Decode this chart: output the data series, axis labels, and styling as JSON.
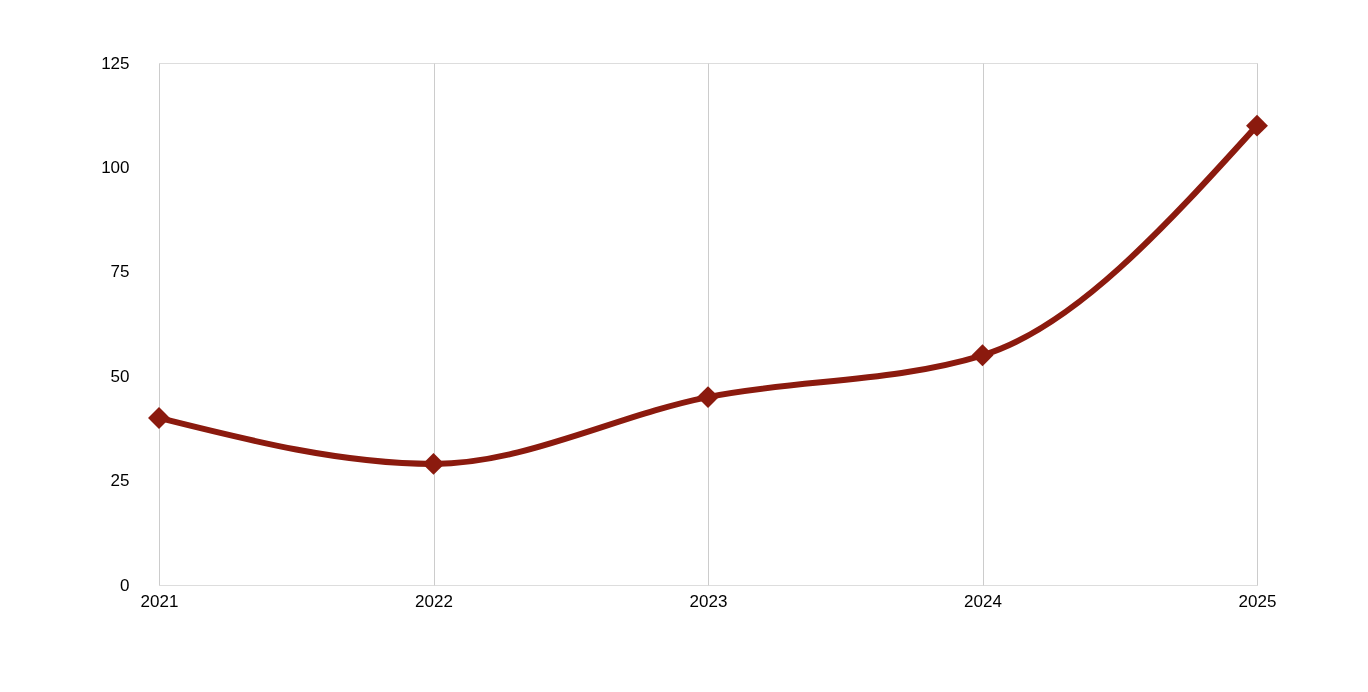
{
  "chart_data": {
    "type": "line",
    "categories": [
      "2021",
      "2022",
      "2023",
      "2024",
      "2025"
    ],
    "series": [
      {
        "color": "#8b1a0e",
        "values": [
          40,
          29,
          45,
          55,
          110
        ]
      }
    ],
    "ylim": [
      0,
      125
    ],
    "yticks": [
      0,
      25,
      50,
      75,
      100,
      125
    ],
    "grid": "x",
    "legend": false,
    "marker": "diamond",
    "line_style": "solid"
  }
}
